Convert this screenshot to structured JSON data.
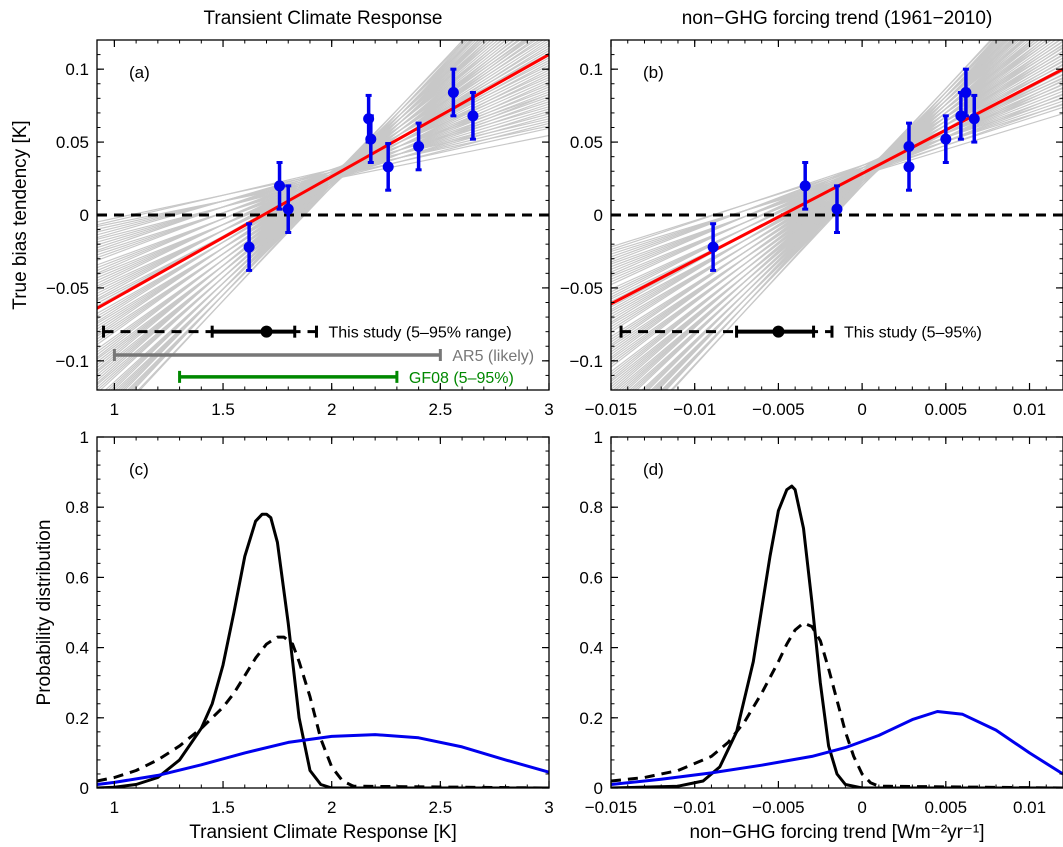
{
  "chart_data": [
    {
      "id": "a",
      "type": "scatter",
      "panel_label": "(a)",
      "title": "Transient Climate Response",
      "xlabel": "",
      "ylabel": "True bias tendency  [K]",
      "xlim": [
        0.92,
        3.0
      ],
      "ylim": [
        -0.12,
        0.12
      ],
      "xticks": [
        1,
        1.5,
        2,
        2.5,
        3
      ],
      "xtick_labels": [
        "1",
        "1.5",
        "2",
        "2.5",
        "3"
      ],
      "yticks": [
        0.1,
        0.05,
        0,
        -0.05,
        -0.1
      ],
      "ytick_labels": [
        "0.1",
        "0.05",
        "0",
        "−0.05",
        "−0.1"
      ],
      "colors": {
        "points": "#0000ee",
        "fit": "#ff0000",
        "ensemble": "#c8c8c8",
        "reference": "#000000"
      },
      "points": [
        {
          "x": 1.62,
          "y": -0.022,
          "err": 0.016
        },
        {
          "x": 1.76,
          "y": 0.02,
          "err": 0.016
        },
        {
          "x": 1.8,
          "y": 0.004,
          "err": 0.016
        },
        {
          "x": 2.17,
          "y": 0.066,
          "err": 0.016
        },
        {
          "x": 2.18,
          "y": 0.052,
          "err": 0.016
        },
        {
          "x": 2.26,
          "y": 0.033,
          "err": 0.016
        },
        {
          "x": 2.4,
          "y": 0.047,
          "err": 0.016
        },
        {
          "x": 2.56,
          "y": 0.084,
          "err": 0.016
        },
        {
          "x": 2.65,
          "y": 0.068,
          "err": 0.016
        }
      ],
      "fit_line": {
        "x": [
          0.92,
          3.0
        ],
        "y": [
          -0.064,
          0.11
        ]
      },
      "ensemble_pivot": {
        "x": 2.05,
        "y": 0.03
      },
      "ensemble_slope_range": [
        0.03,
        0.16
      ],
      "zero_line": 0,
      "ranges": [
        {
          "label": "This study (5–95% range)",
          "style": "dashed-solid",
          "y": -0.08,
          "outer": [
            0.95,
            1.93
          ],
          "inner": [
            1.45,
            1.83
          ],
          "best": 1.7,
          "color": "#000000"
        },
        {
          "label": "AR5 (likely)",
          "style": "solid",
          "y": -0.096,
          "outer": [
            1.0,
            2.5
          ],
          "color": "#777777"
        },
        {
          "label": "GF08 (5–95%)",
          "style": "solid",
          "y": -0.111,
          "outer": [
            1.3,
            2.3
          ],
          "color": "#008800"
        }
      ]
    },
    {
      "id": "b",
      "type": "scatter",
      "panel_label": "(b)",
      "title": "non−GHG forcing trend (1961−2010)",
      "xlabel": "",
      "ylabel": "",
      "xlim": [
        -0.015,
        0.012
      ],
      "ylim": [
        -0.12,
        0.12
      ],
      "xticks": [
        -0.015,
        -0.01,
        -0.005,
        0,
        0.005,
        0.01
      ],
      "xtick_labels": [
        "−0.015",
        "−0.01",
        "−0.005",
        "0",
        "0.005",
        "0.01"
      ],
      "yticks": [
        0.1,
        0.05,
        0,
        -0.05,
        -0.1
      ],
      "ytick_labels": [
        "0.1",
        "0.05",
        "0",
        "−0.05",
        "−0.1"
      ],
      "colors": {
        "points": "#0000ee",
        "fit": "#ff0000",
        "ensemble": "#c8c8c8",
        "reference": "#000000"
      },
      "points": [
        {
          "x": -0.0089,
          "y": -0.022,
          "err": 0.016
        },
        {
          "x": -0.0034,
          "y": 0.02,
          "err": 0.016
        },
        {
          "x": -0.0015,
          "y": 0.004,
          "err": 0.016
        },
        {
          "x": 0.0028,
          "y": 0.047,
          "err": 0.016
        },
        {
          "x": 0.0028,
          "y": 0.033,
          "err": 0.016
        },
        {
          "x": 0.005,
          "y": 0.052,
          "err": 0.016
        },
        {
          "x": 0.0059,
          "y": 0.068,
          "err": 0.016
        },
        {
          "x": 0.0062,
          "y": 0.084,
          "err": 0.016
        },
        {
          "x": 0.0067,
          "y": 0.066,
          "err": 0.016
        }
      ],
      "fit_line": {
        "x": [
          -0.015,
          0.012
        ],
        "y": [
          -0.061,
          0.1
        ]
      },
      "ensemble_pivot": {
        "x": 0.001,
        "y": 0.035
      },
      "ensemble_slope_range": [
        3.5,
        12.5
      ],
      "zero_line": 0,
      "ranges": [
        {
          "label": "This study (5–95%)",
          "style": "dashed-solid",
          "y": -0.08,
          "outer": [
            -0.0144,
            -0.0018
          ],
          "inner": [
            -0.0075,
            -0.0029
          ],
          "best": -0.005,
          "color": "#000000"
        }
      ]
    },
    {
      "id": "c",
      "type": "line",
      "panel_label": "(c)",
      "title": "",
      "xlabel": "Transient Climate Response  [K]",
      "ylabel": "Probability distribution",
      "xlim": [
        0.92,
        3.0
      ],
      "ylim": [
        0,
        1
      ],
      "xticks": [
        1,
        1.5,
        2,
        2.5,
        3
      ],
      "xtick_labels": [
        "1",
        "1.5",
        "2",
        "2.5",
        "3"
      ],
      "yticks": [
        1,
        0.8,
        0.6,
        0.4,
        0.2,
        0
      ],
      "ytick_labels": [
        "1",
        "0.8",
        "0.6",
        "0.4",
        "0.2",
        "0"
      ],
      "series": [
        {
          "style": "solid",
          "color": "#000000",
          "x": [
            0.92,
            1.0,
            1.1,
            1.2,
            1.3,
            1.4,
            1.45,
            1.5,
            1.55,
            1.6,
            1.65,
            1.68,
            1.7,
            1.72,
            1.75,
            1.8,
            1.85,
            1.9,
            1.95,
            2.0,
            2.1,
            3.0
          ],
          "y": [
            0,
            0.002,
            0.01,
            0.03,
            0.08,
            0.17,
            0.24,
            0.35,
            0.5,
            0.66,
            0.76,
            0.78,
            0.78,
            0.77,
            0.7,
            0.47,
            0.2,
            0.05,
            0.01,
            0,
            0,
            0
          ]
        },
        {
          "style": "dashed",
          "color": "#000000",
          "x": [
            0.92,
            1.0,
            1.1,
            1.2,
            1.3,
            1.4,
            1.5,
            1.55,
            1.6,
            1.65,
            1.7,
            1.75,
            1.78,
            1.82,
            1.85,
            1.9,
            1.95,
            2.0,
            2.05,
            2.1,
            3.0
          ],
          "y": [
            0.02,
            0.03,
            0.05,
            0.08,
            0.12,
            0.17,
            0.23,
            0.27,
            0.32,
            0.37,
            0.41,
            0.43,
            0.43,
            0.41,
            0.36,
            0.26,
            0.14,
            0.06,
            0.02,
            0.005,
            0
          ]
        },
        {
          "style": "solid",
          "color": "#0000ee",
          "x": [
            0.92,
            1.0,
            1.2,
            1.4,
            1.6,
            1.8,
            2.0,
            2.2,
            2.4,
            2.6,
            2.8,
            3.0
          ],
          "y": [
            0.01,
            0.016,
            0.036,
            0.066,
            0.1,
            0.13,
            0.147,
            0.152,
            0.143,
            0.117,
            0.08,
            0.045
          ]
        }
      ]
    },
    {
      "id": "d",
      "type": "line",
      "panel_label": "(d)",
      "title": "",
      "xlabel": "non−GHG forcing trend [Wm⁻²yr⁻¹]",
      "ylabel": "",
      "xlim": [
        -0.015,
        0.012
      ],
      "ylim": [
        0,
        1
      ],
      "xticks": [
        -0.015,
        -0.01,
        -0.005,
        0,
        0.005,
        0.01
      ],
      "xtick_labels": [
        "−0.015",
        "−0.01",
        "−0.005",
        "0",
        "0.005",
        "0.01"
      ],
      "yticks": [
        1,
        0.8,
        0.6,
        0.4,
        0.2,
        0
      ],
      "ytick_labels": [
        "1",
        "0.8",
        "0.6",
        "0.4",
        "0.2",
        "0"
      ],
      "series": [
        {
          "style": "solid",
          "color": "#000000",
          "x": [
            -0.015,
            -0.011,
            -0.0095,
            -0.0085,
            -0.0075,
            -0.0065,
            -0.0055,
            -0.005,
            -0.0045,
            -0.0042,
            -0.004,
            -0.0035,
            -0.003,
            -0.0025,
            -0.002,
            -0.0015,
            -0.001,
            0,
            0.012
          ],
          "y": [
            0,
            0.005,
            0.02,
            0.06,
            0.16,
            0.36,
            0.66,
            0.79,
            0.85,
            0.86,
            0.85,
            0.74,
            0.53,
            0.3,
            0.12,
            0.04,
            0.01,
            0,
            0
          ]
        },
        {
          "style": "dashed",
          "color": "#000000",
          "x": [
            -0.015,
            -0.013,
            -0.011,
            -0.009,
            -0.008,
            -0.007,
            -0.006,
            -0.005,
            -0.0045,
            -0.004,
            -0.0035,
            -0.003,
            -0.0025,
            -0.002,
            -0.0015,
            -0.001,
            -0.0005,
            0,
            0.0005,
            0.001,
            0.012
          ],
          "y": [
            0.02,
            0.03,
            0.05,
            0.09,
            0.13,
            0.19,
            0.27,
            0.36,
            0.41,
            0.45,
            0.47,
            0.46,
            0.42,
            0.34,
            0.25,
            0.16,
            0.09,
            0.04,
            0.015,
            0.005,
            0
          ]
        },
        {
          "style": "solid",
          "color": "#0000ee",
          "x": [
            -0.015,
            -0.012,
            -0.009,
            -0.006,
            -0.003,
            -0.001,
            0.001,
            0.003,
            0.0045,
            0.006,
            0.008,
            0.01,
            0.012
          ],
          "y": [
            0.01,
            0.025,
            0.043,
            0.065,
            0.09,
            0.115,
            0.15,
            0.195,
            0.218,
            0.21,
            0.165,
            0.1,
            0.04
          ]
        }
      ]
    }
  ]
}
